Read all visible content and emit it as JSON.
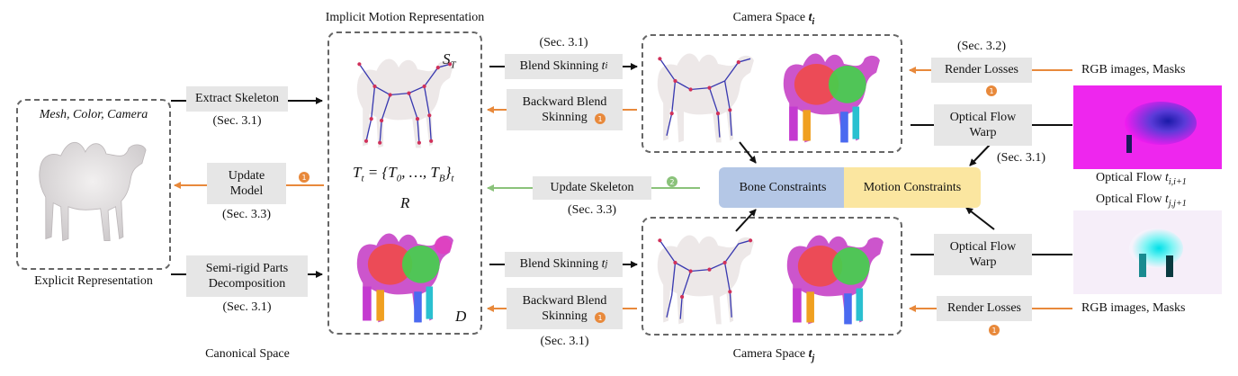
{
  "canonical": {
    "implicit_title": "Implicit Motion Representation",
    "explicit_caption": "Explicit Representation",
    "space_caption": "Canonical Space",
    "mesh_label": "Mesh, Color, Camera",
    "s_t": "S",
    "s_t_sub": "T",
    "t_eq_main": "T",
    "t_eq_sub": "t",
    "t_eq_rest": " = {T",
    "t_eq_0": "0",
    "t_eq_mid": ", …, T",
    "t_eq_b": "B",
    "t_eq_end": "}",
    "t_eq_tail": "t",
    "r_label": "R",
    "d_label": "D"
  },
  "left_steps": {
    "extract_skeleton": "Extract Skeleton",
    "extract_sec": "(Sec. 3.1)",
    "update_model_1": "Update",
    "update_model_2": "Model",
    "update_model_sec": "(Sec. 3.3)",
    "semirigid_1": "Semi-rigid Parts",
    "semirigid_2": "Decomposition",
    "semirigid_sec": "(Sec. 3.1)"
  },
  "middle_steps": {
    "top_sec": "(Sec. 3.1)",
    "blend_skin_i": "Blend Skinning",
    "blend_i_var": "t",
    "blend_i_sub": "i",
    "backward_blend_1": "Backward Blend",
    "backward_blend_2": "Skinning",
    "update_skeleton": "Update Skeleton",
    "update_skeleton_sec": "(Sec. 3.3)",
    "blend_skin_j": "Blend Skinning",
    "blend_j_var": "t",
    "blend_j_sub": "j",
    "backward_blend_j_1": "Backward Blend",
    "backward_blend_j_2": "Skinning",
    "bottom_sec": "(Sec. 3.1)"
  },
  "camera": {
    "top_title": "Camera Space",
    "top_var": "t",
    "top_sub": "i",
    "bottom_title": "Camera Space",
    "bottom_var": "t",
    "bottom_sub": "j"
  },
  "constraints": {
    "bone": "Bone Constraints",
    "motion": "Motion Constraints",
    "bone_color": "#b4c7e6",
    "motion_color": "#fbe6a0"
  },
  "right_steps": {
    "top_sec": "(Sec. 3.2)",
    "render_losses_top": "Render Losses",
    "rgb_top": "RGB images, Masks",
    "flow_warp_top_1": "Optical Flow",
    "flow_warp_top_2": "Warp",
    "flow_warp_top_sec": "(Sec. 3.1)",
    "flow_top_label": "Optical Flow",
    "flow_top_var": "t",
    "flow_top_sub": "i,i+1",
    "flow_bottom_label": "Optical Flow",
    "flow_bottom_var": "t",
    "flow_bottom_sub": "j,j+1",
    "flow_warp_bottom_1": "Optical Flow",
    "flow_warp_bottom_2": "Warp",
    "render_losses_bottom": "Render Losses",
    "rgb_bottom": "RGB images, Masks"
  },
  "badges": {
    "one": "1",
    "two": "2",
    "orange": "#e8893b",
    "green": "#8ac27a"
  }
}
